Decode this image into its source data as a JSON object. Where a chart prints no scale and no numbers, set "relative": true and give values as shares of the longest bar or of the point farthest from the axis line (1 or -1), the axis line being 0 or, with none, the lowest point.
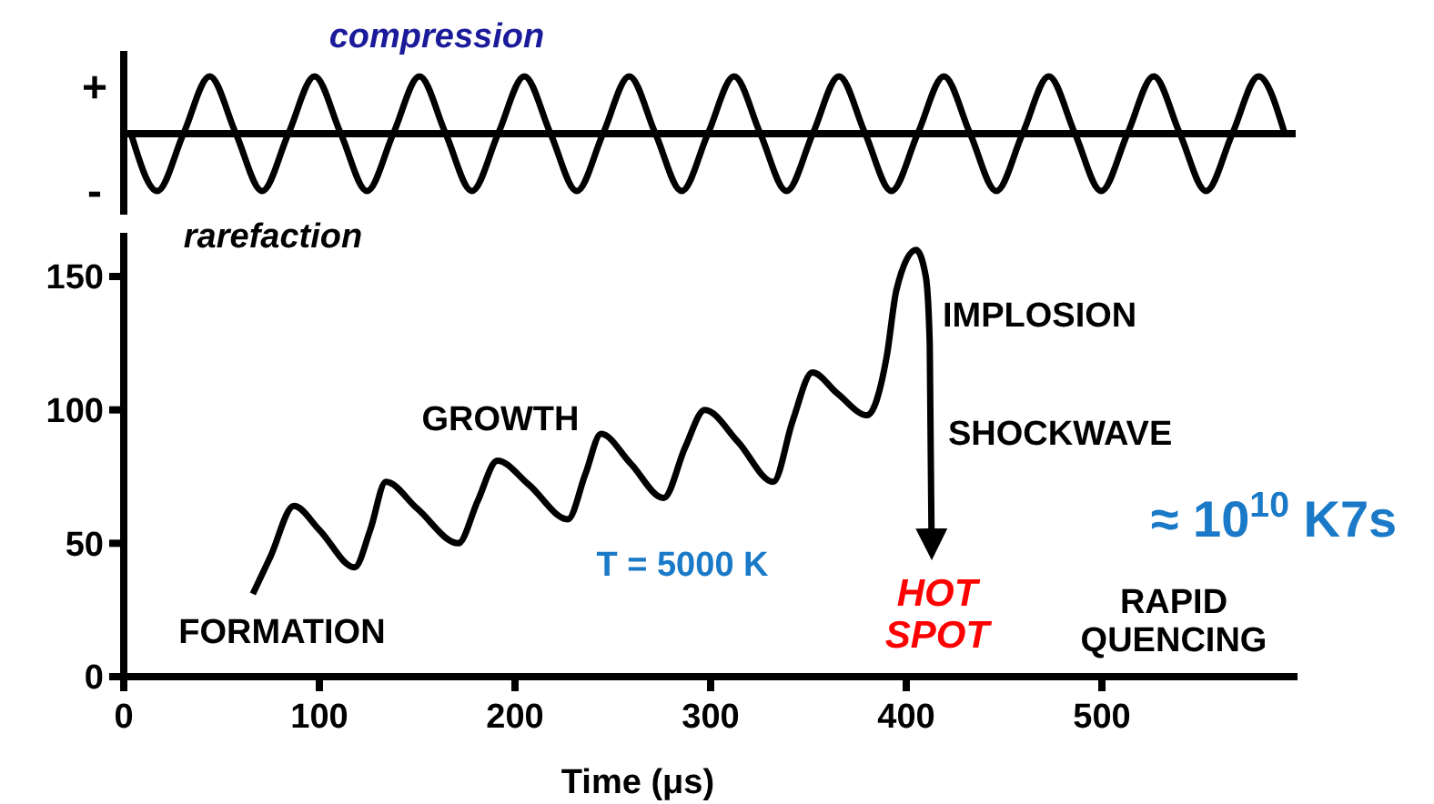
{
  "chart_data": [
    {
      "type": "line",
      "relative": true,
      "categories": [
        null,
        null,
        null,
        null,
        null,
        null,
        null,
        null,
        null,
        null,
        null,
        null,
        null,
        null,
        null,
        null,
        null,
        null,
        null,
        null,
        null,
        null,
        null,
        null,
        null,
        null,
        null,
        null,
        null,
        null,
        null,
        null,
        null,
        null,
        null,
        null,
        null,
        null,
        null,
        null,
        null,
        null,
        null,
        null,
        null
      ],
      "series": [
        {
          "color": "#000000",
          "values": [
            0,
            -1,
            0,
            1,
            0,
            -1,
            0,
            1,
            0,
            -1,
            0,
            1,
            0,
            -1,
            0,
            1,
            0,
            -1,
            0,
            1,
            0,
            -1,
            0,
            1,
            0,
            -1,
            0,
            1,
            0,
            -1,
            0,
            1,
            0,
            -1,
            0,
            1,
            0,
            -1,
            0,
            1,
            0,
            -1,
            0,
            1,
            0
          ]
        }
      ],
      "annotations": [
        "compression",
        "rarefaction",
        "+",
        "-"
      ]
    },
    {
      "type": "line",
      "xlabel": "Time (μs)",
      "xlim": [
        0,
        600
      ],
      "xticks": [
        0,
        100,
        200,
        300,
        400,
        500
      ],
      "ylim": [
        0,
        165
      ],
      "yticks": [
        0,
        50,
        100,
        150
      ],
      "grid": false,
      "series": [
        {
          "color": "#000000",
          "x": [
            66,
            75,
            87,
            100,
            118,
            126,
            134,
            150,
            171,
            181,
            191,
            207,
            227,
            236,
            244,
            259,
            276,
            287,
            297,
            314,
            332,
            342,
            352,
            365,
            380,
            390,
            395,
            405,
            410,
            412,
            413
          ],
          "values": [
            31,
            45,
            64,
            55,
            41,
            55,
            73,
            63,
            50,
            66,
            81,
            72,
            59,
            76,
            91,
            80,
            67,
            86,
            100,
            88,
            73,
            96,
            114,
            106,
            98,
            120,
            145,
            160,
            150,
            125,
            46
          ]
        }
      ],
      "annotations": [
        "FORMATION",
        "GROWTH",
        "IMPLOSION",
        "SHOCKWAVE",
        "T = 5000 K",
        "HOT\nSPOT",
        "RAPID\nQUENCING",
        "≈ 10$^{10}$ K7s"
      ]
    }
  ]
}
